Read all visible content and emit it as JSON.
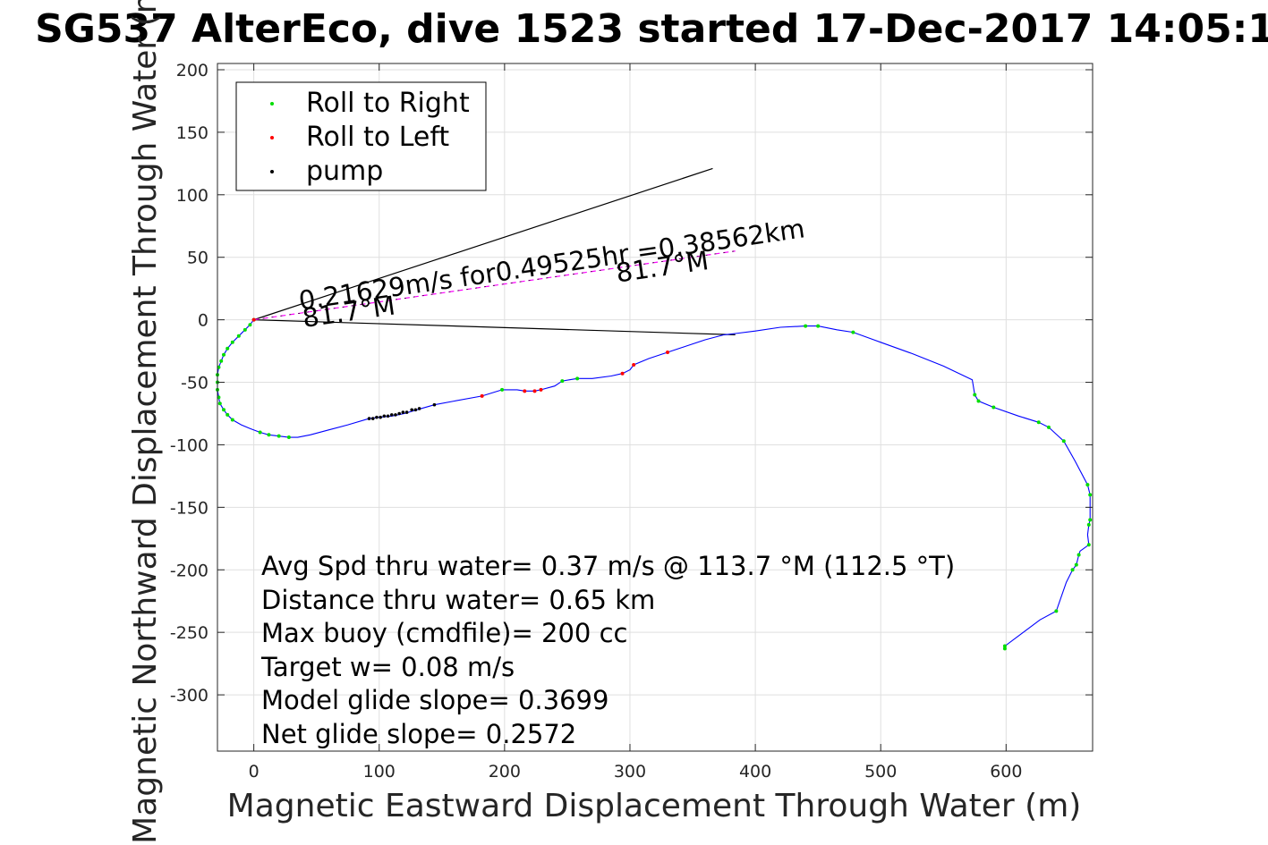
{
  "chart_data": {
    "type": "line",
    "title": "SG537 AlterEco, dive 1523 started 17-Dec-2017 14:05:1",
    "xlabel": "Magnetic Eastward Displacement Through Water (m)",
    "ylabel": "Magnetic Northward Displacement Through Water (m)",
    "xlim": [
      -29,
      669
    ],
    "ylim": [
      -345,
      205
    ],
    "xticks": [
      0,
      100,
      200,
      300,
      400,
      500,
      600
    ],
    "yticks": [
      200,
      150,
      100,
      50,
      0,
      -50,
      -100,
      -150,
      -200,
      -250,
      -300
    ],
    "grid": true,
    "legend_position": "top-left",
    "colors": {
      "track": "#0000ff",
      "roll_right": "#00dd00",
      "roll_left": "#ff0000",
      "pump": "#000000",
      "current": "#ff00ff",
      "reference": "#000000"
    },
    "legend": [
      "Roll to Right",
      "Roll to Left",
      "pump"
    ],
    "track": [
      [
        0,
        0
      ],
      [
        -3,
        -4
      ],
      [
        -7,
        -8
      ],
      [
        -12,
        -13
      ],
      [
        -17,
        -18
      ],
      [
        -21,
        -23
      ],
      [
        -24,
        -28
      ],
      [
        -26,
        -33
      ],
      [
        -28,
        -38
      ],
      [
        -29,
        -44
      ],
      [
        -29,
        -50
      ],
      [
        -29,
        -56
      ],
      [
        -28,
        -62
      ],
      [
        -27,
        -67
      ],
      [
        -24,
        -72
      ],
      [
        -21,
        -76
      ],
      [
        -17,
        -80
      ],
      [
        -10,
        -84
      ],
      [
        -3,
        -87
      ],
      [
        5,
        -90
      ],
      [
        12,
        -92
      ],
      [
        20,
        -93
      ],
      [
        28,
        -94
      ],
      [
        35,
        -94
      ],
      [
        45,
        -92
      ],
      [
        60,
        -88
      ],
      [
        75,
        -84
      ],
      [
        92,
        -79
      ],
      [
        100,
        -78
      ],
      [
        110,
        -77
      ],
      [
        120,
        -75
      ],
      [
        130,
        -72
      ],
      [
        144,
        -68
      ],
      [
        160,
        -65
      ],
      [
        182,
        -61
      ],
      [
        198,
        -56
      ],
      [
        210,
        -56
      ],
      [
        216,
        -57
      ],
      [
        224,
        -57
      ],
      [
        229,
        -56
      ],
      [
        240,
        -53
      ],
      [
        246,
        -49
      ],
      [
        252,
        -48
      ],
      [
        258,
        -47
      ],
      [
        270,
        -47
      ],
      [
        285,
        -45
      ],
      [
        294,
        -43
      ],
      [
        300,
        -40
      ],
      [
        303,
        -36
      ],
      [
        315,
        -31
      ],
      [
        330,
        -26
      ],
      [
        345,
        -21
      ],
      [
        360,
        -16
      ],
      [
        375,
        -12
      ],
      [
        384,
        -11
      ],
      [
        400,
        -9
      ],
      [
        420,
        -6
      ],
      [
        440,
        -5
      ],
      [
        450,
        -5
      ],
      [
        465,
        -8
      ],
      [
        478,
        -10
      ],
      [
        500,
        -18
      ],
      [
        525,
        -27
      ],
      [
        550,
        -37
      ],
      [
        573,
        -48
      ],
      [
        575,
        -60
      ],
      [
        578,
        -65
      ],
      [
        590,
        -70
      ],
      [
        610,
        -77
      ],
      [
        626,
        -82
      ],
      [
        634,
        -86
      ],
      [
        646,
        -97
      ],
      [
        655,
        -113
      ],
      [
        665,
        -132
      ],
      [
        667,
        -140
      ],
      [
        667,
        -155
      ],
      [
        667,
        -160
      ],
      [
        666,
        -164
      ],
      [
        665,
        -172
      ],
      [
        666,
        -180
      ],
      [
        659,
        -185
      ],
      [
        658,
        -188
      ],
      [
        656,
        -196
      ],
      [
        653,
        -200
      ],
      [
        648,
        -210
      ],
      [
        640,
        -233
      ],
      [
        627,
        -240
      ],
      [
        599,
        -261
      ],
      [
        599,
        -263
      ]
    ],
    "roll_right": [
      [
        0,
        0
      ],
      [
        -3,
        -4
      ],
      [
        -7,
        -8
      ],
      [
        -12,
        -13
      ],
      [
        -17,
        -18
      ],
      [
        -21,
        -23
      ],
      [
        -24,
        -28
      ],
      [
        -26,
        -33
      ],
      [
        -28,
        -38
      ],
      [
        -29,
        -44
      ],
      [
        -29,
        -50
      ],
      [
        -29,
        -56
      ],
      [
        -28,
        -62
      ],
      [
        -27,
        -67
      ],
      [
        -24,
        -72
      ],
      [
        -21,
        -76
      ],
      [
        -17,
        -80
      ],
      [
        5,
        -90
      ],
      [
        12,
        -92
      ],
      [
        20,
        -93
      ],
      [
        28,
        -94
      ],
      [
        198,
        -56
      ],
      [
        246,
        -49
      ],
      [
        258,
        -47
      ],
      [
        440,
        -5
      ],
      [
        450,
        -5
      ],
      [
        478,
        -10
      ],
      [
        575,
        -60
      ],
      [
        578,
        -65
      ],
      [
        590,
        -70
      ],
      [
        626,
        -82
      ],
      [
        634,
        -86
      ],
      [
        646,
        -97
      ],
      [
        665,
        -132
      ],
      [
        667,
        -140
      ],
      [
        667,
        -160
      ],
      [
        666,
        -164
      ],
      [
        666,
        -180
      ],
      [
        658,
        -188
      ],
      [
        656,
        -196
      ],
      [
        653,
        -200
      ],
      [
        640,
        -233
      ],
      [
        599,
        -261
      ],
      [
        599,
        -263
      ]
    ],
    "roll_left": [
      [
        0,
        0
      ],
      [
        182,
        -61
      ],
      [
        216,
        -57
      ],
      [
        224,
        -57
      ],
      [
        229,
        -56
      ],
      [
        294,
        -43
      ],
      [
        303,
        -36
      ],
      [
        330,
        -26
      ]
    ],
    "pump": [
      [
        92,
        -79
      ],
      [
        95,
        -79
      ],
      [
        98,
        -78
      ],
      [
        101,
        -78
      ],
      [
        104,
        -77
      ],
      [
        107,
        -77
      ],
      [
        110,
        -76
      ],
      [
        113,
        -76
      ],
      [
        116,
        -75
      ],
      [
        119,
        -74
      ],
      [
        122,
        -74
      ],
      [
        126,
        -72
      ],
      [
        129,
        -72
      ],
      [
        132,
        -71
      ],
      [
        144,
        -68
      ]
    ],
    "current_line": [
      [
        0,
        0
      ],
      [
        384,
        55
      ]
    ],
    "reference_lines": [
      [
        [
          0,
          0
        ],
        [
          366,
          121
        ]
      ],
      [
        [
          0,
          0
        ],
        [
          384,
          -12
        ]
      ]
    ],
    "annotations": [
      {
        "text": "0.21629m/s for0.49525hr =0.38562km",
        "x": 37,
        "y": 8,
        "angle_deg": -8.2
      },
      {
        "text": "81.7°M",
        "x": 290,
        "y": 30,
        "angle_deg": -8.2
      },
      {
        "text": "81.7°M",
        "x": 40,
        "y": -6,
        "angle_deg": -8.2
      }
    ],
    "stats": [
      "Avg Spd thru water=  0.37 m/s @ 113.7 °M (112.5 °T)",
      "Distance thru water=  0.65 km",
      "Max buoy (cmdfile)= 200 cc",
      "Target w= 0.08 m/s",
      "Model glide slope= 0.3699",
      "Net glide slope= 0.2572"
    ]
  }
}
